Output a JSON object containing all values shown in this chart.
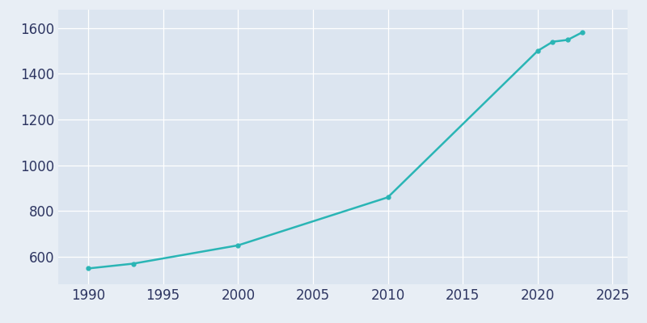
{
  "years": [
    1990,
    1993,
    2000,
    2010,
    2020,
    2021,
    2022,
    2023
  ],
  "population": [
    549,
    570,
    650,
    860,
    1500,
    1540,
    1548,
    1582
  ],
  "line_color": "#2ab5b5",
  "line_width": 1.8,
  "marker": "o",
  "marker_size": 3.5,
  "bg_color": "#e8eef5",
  "plot_bg_color": "#dce5f0",
  "xlim": [
    1988,
    2026
  ],
  "ylim": [
    480,
    1680
  ],
  "xticks": [
    1990,
    1995,
    2000,
    2005,
    2010,
    2015,
    2020,
    2025
  ],
  "yticks": [
    600,
    800,
    1000,
    1200,
    1400,
    1600
  ],
  "tick_label_color": "#2d3561",
  "grid_color": "#ffffff",
  "grid_linewidth": 0.9,
  "figsize": [
    8.0,
    4.0
  ],
  "dpi": 100
}
